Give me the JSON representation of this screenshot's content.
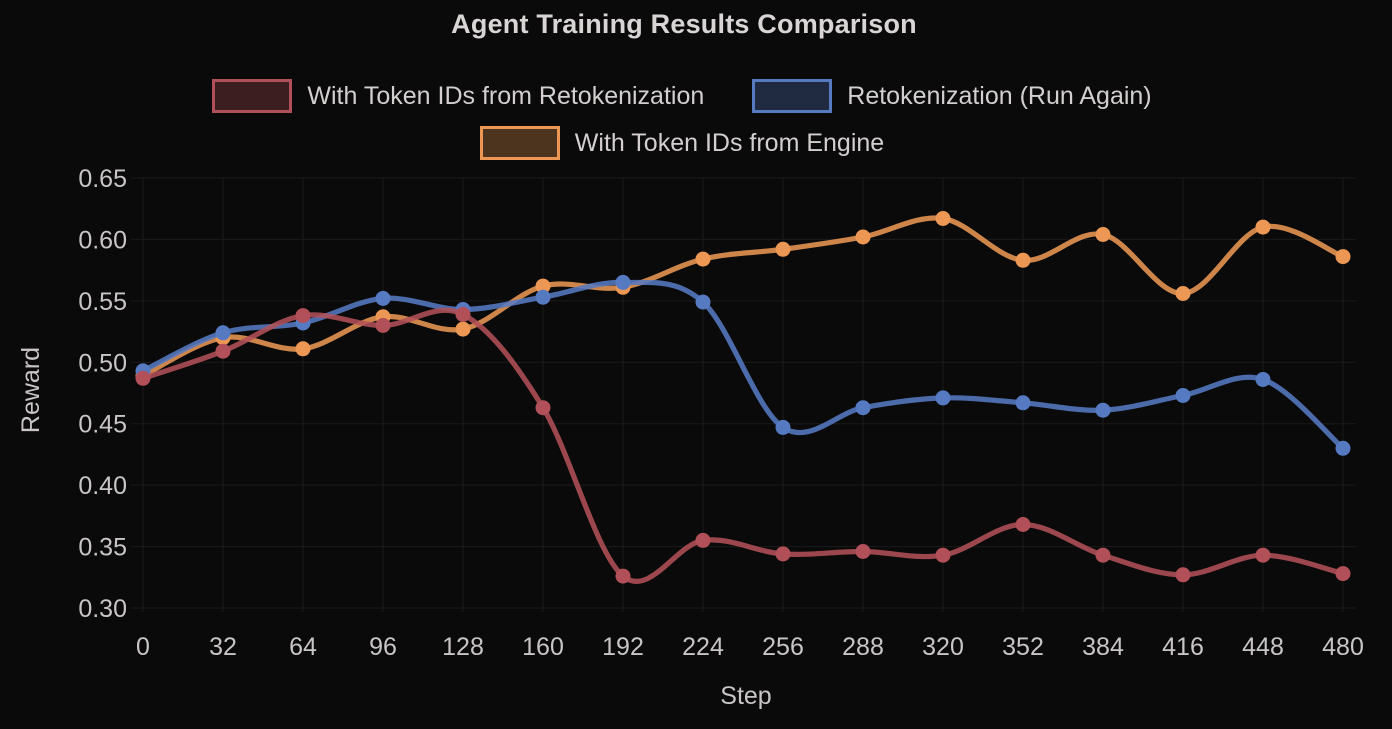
{
  "title": "Agent Training Results Comparison",
  "colors": {
    "background": "#0a0a0a",
    "gridline": "#1a1a1a",
    "title_text": "#d9d5d5",
    "legend_text": "#d3cfcf",
    "tick_text": "#c9c5c5",
    "series_red": "#b25059",
    "series_blue": "#567ac2",
    "series_orange": "#ec9854"
  },
  "chart_data": {
    "type": "line",
    "title": "Agent Training Results Comparison",
    "xlabel": "Step",
    "ylabel": "Reward",
    "x": [
      0,
      32,
      64,
      96,
      128,
      160,
      192,
      224,
      256,
      288,
      320,
      352,
      384,
      416,
      448,
      480
    ],
    "series": [
      {
        "name": "With Token IDs from Retokenization",
        "color": "#b25059",
        "fill": "rgba(178,80,89,0.3)",
        "values": [
          0.487,
          0.509,
          0.538,
          0.53,
          0.539,
          0.463,
          0.326,
          0.355,
          0.344,
          0.346,
          0.343,
          0.368,
          0.343,
          0.327,
          0.343,
          0.328
        ]
      },
      {
        "name": "Retokenization (Run Again)",
        "color": "#567ac2",
        "fill": "rgba(86,122,194,0.3)",
        "values": [
          0.493,
          0.524,
          0.532,
          0.552,
          0.543,
          0.553,
          0.565,
          0.549,
          0.447,
          0.463,
          0.471,
          0.467,
          0.461,
          0.473,
          0.486,
          0.43
        ]
      },
      {
        "name": "With Token IDs from Engine",
        "color": "#ec9854",
        "fill": "rgba(236,152,84,0.3)",
        "values": [
          0.489,
          0.52,
          0.511,
          0.537,
          0.527,
          0.562,
          0.561,
          0.584,
          0.592,
          0.602,
          0.617,
          0.583,
          0.604,
          0.556,
          0.61,
          0.586
        ]
      }
    ],
    "yticks": [
      0.3,
      0.35,
      0.4,
      0.45,
      0.5,
      0.55,
      0.6,
      0.65
    ],
    "ylim": [
      0.3,
      0.65
    ],
    "grid": true,
    "legend_position": "top",
    "marker": "circle",
    "smooth": true
  }
}
